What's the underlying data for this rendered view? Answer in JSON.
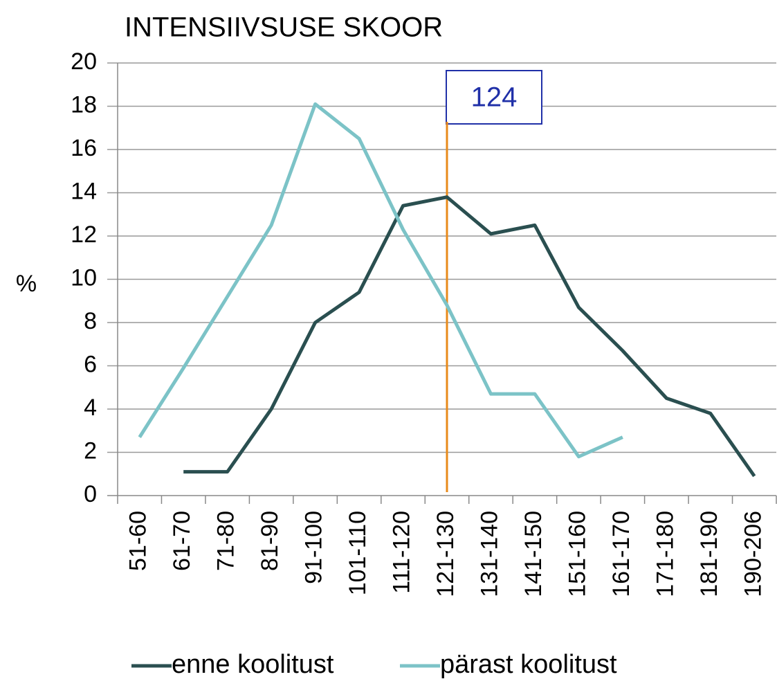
{
  "chart_data": {
    "type": "line",
    "title": "INTENSIIVSUSE SKOOR",
    "y_label": "%",
    "categories": [
      "51-60",
      "61-70",
      "71-80",
      "81-90",
      "91-100",
      "101-110",
      "111-120",
      "121-130",
      "131-140",
      "141-150",
      "151-160",
      "161-170",
      "171-180",
      "181-190",
      "190-206"
    ],
    "series": [
      {
        "name": "enne koolitust",
        "color": "#2a4f50",
        "values": [
          null,
          1.1,
          1.1,
          4,
          8,
          9.4,
          13.4,
          13.8,
          12.1,
          12.5,
          8.7,
          6.7,
          4.5,
          3.8,
          0.9
        ]
      },
      {
        "name": "pärast koolitust",
        "color": "#7cc3c7",
        "values": [
          2.7,
          5.9,
          9.2,
          12.5,
          18.1,
          16.5,
          12.3,
          8.8,
          4.7,
          4.7,
          1.8,
          2.7,
          null,
          null,
          null
        ]
      }
    ],
    "ylim": [
      0,
      20
    ],
    "yticks": [
      0,
      2,
      4,
      6,
      8,
      10,
      12,
      14,
      16,
      18,
      20
    ],
    "grid": true,
    "annotation": "124",
    "annotation_color": "#e88a1a",
    "annotation_box_color": "#2030a8",
    "legend": "bottom"
  }
}
